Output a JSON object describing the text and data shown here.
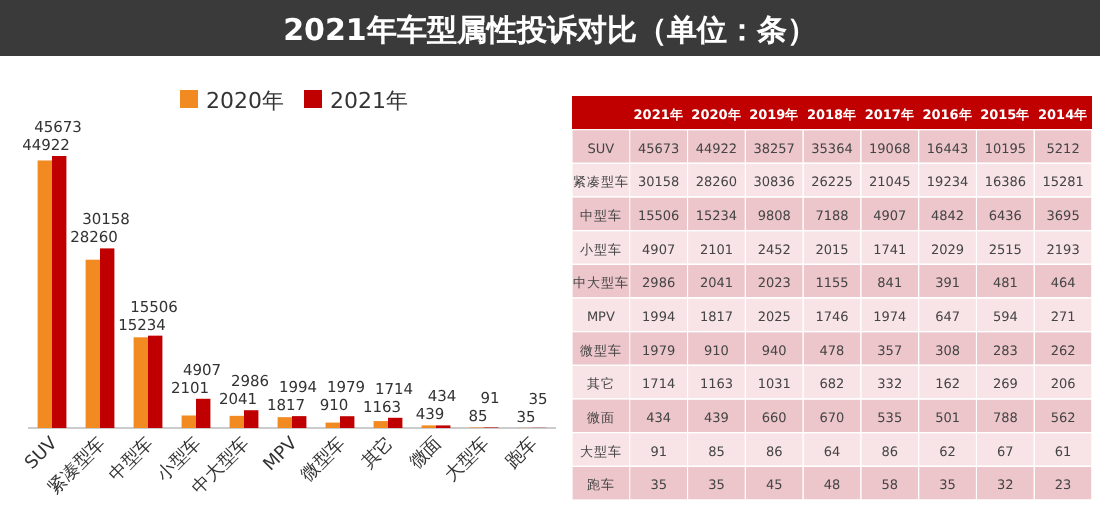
{
  "chart_data": [
    {
      "type": "bar",
      "title": "2021年车型属性投诉对比（单位：条）",
      "categories": [
        "SUV",
        "紧凑型车",
        "中型车",
        "小型车",
        "中大型车",
        "MPV",
        "微型车",
        "其它",
        "微面",
        "大型车",
        "跑车"
      ],
      "series": [
        {
          "name": "2020年",
          "color": "#f28a22",
          "values": [
            44922,
            28260,
            15234,
            2101,
            2041,
            1817,
            910,
            1163,
            439,
            85,
            35
          ]
        },
        {
          "name": "2021年",
          "color": "#c00000",
          "values": [
            45673,
            30158,
            15506,
            4907,
            2986,
            1994,
            1979,
            1714,
            434,
            91,
            35
          ]
        }
      ],
      "data_labels": true,
      "legend": "top"
    },
    {
      "type": "heatmap",
      "categories": [
        "2021年",
        "2020年",
        "2019年",
        "2018年",
        "2017年",
        "2016年",
        "2015年",
        "2014年"
      ],
      "y_categories": [
        "SUV",
        "紧凑型车",
        "中型车",
        "小型车",
        "中大型车",
        "MPV",
        "微型车",
        "其它",
        "微面",
        "大型车",
        "跑车"
      ],
      "cells": [
        [
          45673,
          44922,
          38257,
          35364,
          19068,
          16443,
          10195,
          5212
        ],
        [
          30158,
          28260,
          30836,
          26225,
          21045,
          19234,
          16386,
          15281
        ],
        [
          15506,
          15234,
          9808,
          7188,
          4907,
          4842,
          6436,
          3695
        ],
        [
          4907,
          2101,
          2452,
          2015,
          1741,
          2029,
          2515,
          2193
        ],
        [
          2986,
          2041,
          2023,
          1155,
          841,
          391,
          481,
          464
        ],
        [
          1994,
          1817,
          2025,
          1746,
          1974,
          647,
          594,
          271
        ],
        [
          1979,
          910,
          940,
          478,
          357,
          308,
          283,
          262
        ],
        [
          1714,
          1163,
          1031,
          682,
          332,
          162,
          269,
          206
        ],
        [
          434,
          439,
          660,
          670,
          535,
          501,
          788,
          562
        ],
        [
          91,
          85,
          86,
          64,
          86,
          62,
          67,
          61
        ],
        [
          35,
          35,
          45,
          48,
          58,
          35,
          32,
          23
        ]
      ],
      "data_labels": true
    }
  ]
}
